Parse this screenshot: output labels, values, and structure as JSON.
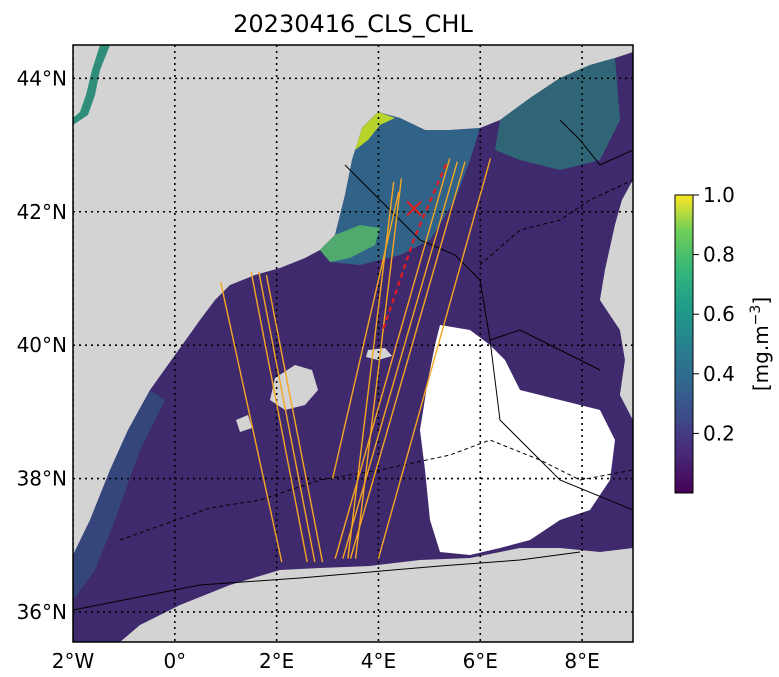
{
  "map": {
    "title": "20230416_CLS_CHL",
    "projection": "PlateCarree",
    "extent": {
      "lon": [
        -2,
        9
      ],
      "lat": [
        35.55,
        44.5
      ]
    },
    "xticks": [
      {
        "value": -2,
        "label": "2°W"
      },
      {
        "value": 0,
        "label": "0°"
      },
      {
        "value": 2,
        "label": "2°E"
      },
      {
        "value": 4,
        "label": "4°E"
      },
      {
        "value": 6,
        "label": "6°E"
      },
      {
        "value": 8,
        "label": "8°E"
      }
    ],
    "yticks": [
      {
        "value": 36,
        "label": "36°N"
      },
      {
        "value": 38,
        "label": "38°N"
      },
      {
        "value": 40,
        "label": "40°N"
      },
      {
        "value": 42,
        "label": "42°N"
      },
      {
        "value": 44,
        "label": "44°N"
      }
    ],
    "gridlines": true,
    "gridline_style": "dotted",
    "land_color": "#d3d3d3",
    "colormap": "viridis",
    "marker": {
      "type": "x",
      "color": "#e41a1c",
      "lon": 4.7,
      "lat": 42.05
    },
    "red_track": {
      "color": "#e41a1c",
      "style": "dashed",
      "points": [
        [
          4.1,
          40.25
        ],
        [
          4.7,
          41.6
        ],
        [
          5.35,
          42.75
        ]
      ]
    },
    "swath_color": "#f5a623",
    "swath_lines": [
      [
        [
          1.5,
          41.1
        ],
        [
          2.6,
          36.75
        ]
      ],
      [
        [
          1.65,
          41.1
        ],
        [
          2.75,
          36.75
        ]
      ],
      [
        [
          1.8,
          41.05
        ],
        [
          2.9,
          36.75
        ]
      ],
      [
        [
          0.9,
          40.95
        ],
        [
          2.1,
          36.75
        ]
      ],
      [
        [
          5.7,
          42.75
        ],
        [
          3.45,
          36.8
        ]
      ],
      [
        [
          5.55,
          42.75
        ],
        [
          3.3,
          36.8
        ]
      ],
      [
        [
          5.4,
          42.8
        ],
        [
          3.15,
          36.8
        ]
      ],
      [
        [
          4.45,
          42.5
        ],
        [
          3.55,
          36.8
        ]
      ],
      [
        [
          4.3,
          42.45
        ],
        [
          3.4,
          36.8
        ]
      ],
      [
        [
          6.2,
          42.8
        ],
        [
          4.0,
          36.8
        ]
      ],
      [
        [
          3.1,
          38.0
        ],
        [
          4.4,
          42.3
        ]
      ]
    ],
    "colorbar": {
      "label": "[mg.m",
      "label_superscript": "−3",
      "label_end": "]",
      "min": 0.0,
      "max": 1.0,
      "ticks": [
        {
          "value": 0.2,
          "label": "0.2"
        },
        {
          "value": 0.4,
          "label": "0.4"
        },
        {
          "value": 0.6,
          "label": "0.6"
        },
        {
          "value": 0.8,
          "label": "0.8"
        },
        {
          "value": 1.0,
          "label": "1.0"
        }
      ]
    }
  }
}
